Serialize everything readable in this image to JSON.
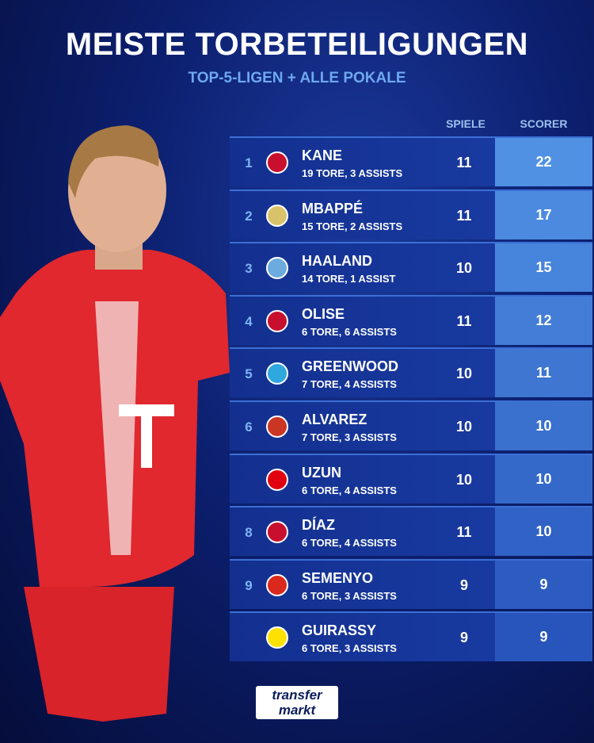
{
  "header": {
    "title": "MEISTE TORBETEILIGUNGEN",
    "subtitle": "TOP-5-LIGEN + ALLE POKALE"
  },
  "table": {
    "columns": [
      "SPIELE",
      "SCORER"
    ],
    "rows": [
      {
        "rank": "1",
        "name": "KANE",
        "detail": "19 TORE, 3 ASSISTS",
        "games": 11,
        "points": 22
      },
      {
        "rank": "2",
        "name": "MBAPPÉ",
        "detail": "15 TORE, 2 ASSISTS",
        "games": 11,
        "points": 17
      },
      {
        "rank": "3",
        "name": "HAALAND",
        "detail": "14 TORE, 1 ASSIST",
        "games": 10,
        "points": 15
      },
      {
        "rank": "4",
        "name": "OLISE",
        "detail": "6 TORE, 6 ASSISTS",
        "games": 11,
        "points": 12
      },
      {
        "rank": "5",
        "name": "GREENWOOD",
        "detail": "7 TORE, 4 ASSISTS",
        "games": 10,
        "points": 11
      },
      {
        "rank": "6",
        "name": "ALVAREZ",
        "detail": "7 TORE, 3 ASSISTS",
        "games": 10,
        "points": 10
      },
      {
        "name": "UZUN",
        "detail": "6 TORE, 4 ASSISTS",
        "games": 10,
        "points": 10
      },
      {
        "rank": "8",
        "name": "DÍAZ",
        "detail": "6 TORE, 4 ASSISTS",
        "games": 11,
        "points": 10
      },
      {
        "rank": "9",
        "name": "SEMENYO",
        "detail": "6 TORE, 3 ASSISTS",
        "games": 9,
        "points": 9
      },
      {
        "name": "GUIRASSY",
        "detail": "6 TORE, 3 ASSISTS",
        "games": 9,
        "points": 9
      }
    ]
  },
  "logo": [
    "transfer",
    "markt"
  ]
}
